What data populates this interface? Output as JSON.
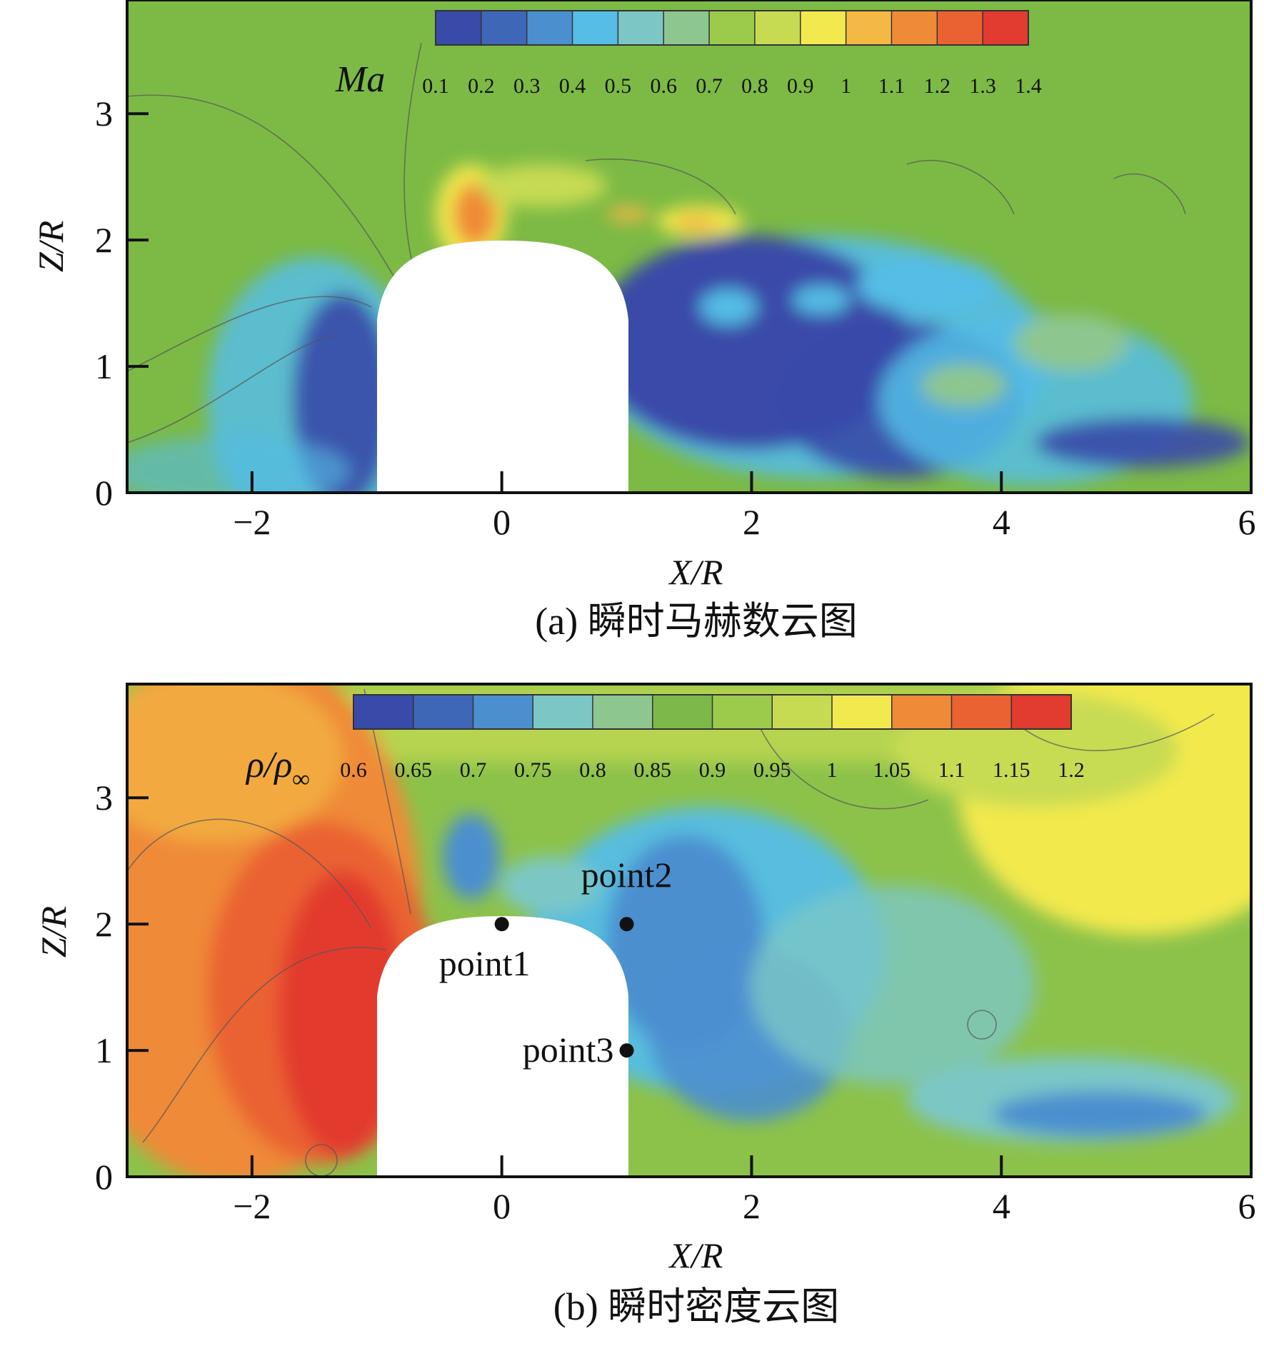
{
  "chart_data": [
    {
      "type": "heatmap",
      "id": "a",
      "quantity": "Ma",
      "xlabel": "X/R",
      "ylabel": "Z/R",
      "xlim": [
        -3,
        6
      ],
      "ylim": [
        0,
        3.9
      ],
      "xticks": [
        -2,
        0,
        2,
        4,
        6
      ],
      "yticks": [
        0,
        1,
        2,
        3
      ],
      "colorbar": {
        "title": "Ma",
        "levels": [
          0.1,
          0.2,
          0.3,
          0.4,
          0.5,
          0.6,
          0.7,
          0.8,
          0.9,
          1,
          1.1,
          1.2,
          1.3,
          1.4
        ],
        "labels": [
          "0.1",
          "0.2",
          "0.3",
          "0.4",
          "0.5",
          "0.6",
          "0.7",
          "0.8",
          "0.9",
          "1",
          "1.1",
          "1.2",
          "1.3",
          "1.4"
        ]
      },
      "caption": "(a) 瞬时马赫数云图",
      "background_level": 0.75
    },
    {
      "type": "heatmap",
      "id": "b",
      "quantity": "ρ/ρ∞",
      "xlabel": "X/R",
      "ylabel": "Z/R",
      "xlim": [
        -3,
        6
      ],
      "ylim": [
        0,
        3.9
      ],
      "xticks": [
        -2,
        0,
        2,
        4,
        6
      ],
      "yticks": [
        0,
        1,
        2,
        3
      ],
      "colorbar": {
        "title_main": "ρ/ρ",
        "title_sub": "∞",
        "levels": [
          0.6,
          0.65,
          0.7,
          0.75,
          0.8,
          0.85,
          0.9,
          0.95,
          1,
          1.05,
          1.1,
          1.15,
          1.2
        ],
        "labels": [
          "0.6",
          "0.65",
          "0.7",
          "0.75",
          "0.8",
          "0.85",
          "0.9",
          "0.95",
          "1",
          "1.05",
          "1.1",
          "1.15",
          "1.2"
        ]
      },
      "caption": "(b) 瞬时密度云图",
      "points": [
        {
          "label": "point1",
          "x": 0,
          "y": 2
        },
        {
          "label": "point2",
          "x": 1,
          "y": 2
        },
        {
          "label": "point3",
          "x": 1,
          "y": 1
        }
      ]
    }
  ],
  "colormap": [
    "#3a4aa8",
    "#3f67b8",
    "#4b8fcf",
    "#55bde6",
    "#7cc7c6",
    "#8ec690",
    "#7db84a",
    "#9ccb4c",
    "#c7db52",
    "#f2e94e",
    "#f4b844",
    "#ef8a37",
    "#ea6232",
    "#e23b2f"
  ]
}
